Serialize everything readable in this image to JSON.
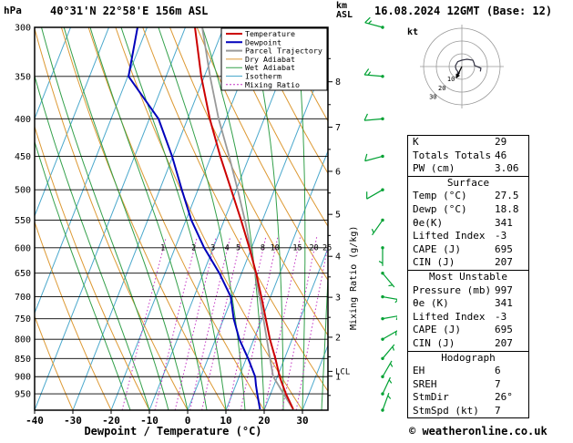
{
  "header": {
    "pressure_unit": "hPa",
    "station": "40°31'N 22°58'E 156m ASL",
    "altitude_unit": "km",
    "altitude_unit_2": "ASL",
    "datetime": "16.08.2024 12GMT (Base: 12)"
  },
  "axes": {
    "pressure_ticks": [
      300,
      350,
      400,
      450,
      500,
      550,
      600,
      650,
      700,
      750,
      800,
      850,
      900,
      950
    ],
    "temp_ticks": [
      -40,
      -30,
      -20,
      -10,
      0,
      10,
      20,
      30
    ],
    "km_ticks": [
      1,
      2,
      3,
      4,
      5,
      6,
      7,
      8
    ],
    "x_label": "Dewpoint / Temperature (°C)",
    "mixing_ratio_axis_label": "Mixing Ratio (g/kg)",
    "mixing_ratio_ticks": [
      1,
      2,
      3,
      4,
      5,
      8,
      10,
      15,
      20,
      25
    ],
    "lcl_label": "LCL"
  },
  "legend": [
    {
      "label": "Temperature",
      "style": "temperature",
      "width": 2,
      "dash": ""
    },
    {
      "label": "Dewpoint",
      "style": "dewpoint",
      "width": 2,
      "dash": ""
    },
    {
      "label": "Parcel Trajectory",
      "style": "parcel",
      "width": 2,
      "dash": ""
    },
    {
      "label": "Dry Adiabat",
      "style": "dry_adiabat",
      "width": 1,
      "dash": ""
    },
    {
      "label": "Wet Adiabat",
      "style": "wet_adiabat",
      "width": 1,
      "dash": ""
    },
    {
      "label": "Isotherm",
      "style": "isotherm",
      "width": 1,
      "dash": ""
    },
    {
      "label": "Mixing Ratio",
      "style": "mixing_ratio",
      "width": 1,
      "dash": "2,2"
    }
  ],
  "chart_style": {
    "temperature": "#cc0000",
    "dewpoint": "#0000bb",
    "parcel": "#999999",
    "dry_adiabat": "#dd9933",
    "wet_adiabat": "#33a04a",
    "isotherm": "#4aa8cc",
    "mixing_ratio": "#c333c3",
    "wind": "#00a133"
  },
  "chart_data": {
    "type": "line",
    "title": "Skew-T log-P sounding",
    "xlabel": "Dewpoint / Temperature (°C)",
    "ylabel": "hPa",
    "x_range": [
      -40,
      37
    ],
    "pressure_range": [
      300,
      1000
    ],
    "legend_position": "top-right",
    "grid": true,
    "pressure": [
      997,
      950,
      925,
      900,
      850,
      800,
      750,
      700,
      650,
      600,
      550,
      500,
      450,
      400,
      350,
      300
    ],
    "series": {
      "temperature": [
        27.5,
        24.0,
        22.3,
        20.6,
        17.6,
        14.2,
        11.0,
        7.6,
        3.8,
        -0.6,
        -5.6,
        -11.3,
        -17.6,
        -24.2,
        -30.8,
        -37.5
      ],
      "dewpoint": [
        18.8,
        16.5,
        15.3,
        14.2,
        10.5,
        6.2,
        2.6,
        -0.4,
        -5.8,
        -12.4,
        -18.6,
        -24.2,
        -30.2,
        -37.6,
        -49.8,
        -52.5
      ],
      "parcel": [
        27.5,
        23.4,
        21.2,
        18.9,
        16.2,
        13.4,
        10.4,
        7.1,
        3.6,
        -0.3,
        -4.6,
        -9.6,
        -15.3,
        -21.9,
        -28.5,
        -35.6
      ]
    },
    "lcl_pressure": 885
  },
  "wind_barbs": [
    {
      "p": 1000,
      "dir": 20,
      "spd": 5
    },
    {
      "p": 950,
      "dir": 25,
      "spd": 7
    },
    {
      "p": 900,
      "dir": 30,
      "spd": 7
    },
    {
      "p": 850,
      "dir": 40,
      "spd": 5
    },
    {
      "p": 800,
      "dir": 60,
      "spd": 5
    },
    {
      "p": 750,
      "dir": 80,
      "spd": 5
    },
    {
      "p": 700,
      "dir": 100,
      "spd": 5
    },
    {
      "p": 650,
      "dir": 140,
      "spd": 5
    },
    {
      "p": 600,
      "dir": 180,
      "spd": 5
    },
    {
      "p": 550,
      "dir": 215,
      "spd": 7
    },
    {
      "p": 500,
      "dir": 240,
      "spd": 10
    },
    {
      "p": 450,
      "dir": 255,
      "spd": 10
    },
    {
      "p": 400,
      "dir": 265,
      "spd": 10
    },
    {
      "p": 350,
      "dir": 275,
      "spd": 15
    },
    {
      "p": 300,
      "dir": 285,
      "spd": 15
    }
  ],
  "hodograph": {
    "unit_label": "kt",
    "rings_kt": [
      10,
      20,
      30
    ],
    "storm_motion": {
      "dir_deg": 26,
      "speed_kt": 7
    }
  },
  "table": {
    "sections": [
      {
        "header": "",
        "rows": [
          [
            "K",
            "29"
          ],
          [
            "Totals Totals",
            "46"
          ],
          [
            "PW (cm)",
            "3.06"
          ]
        ]
      },
      {
        "header": "Surface",
        "rows": [
          [
            "Temp (°C)",
            "27.5"
          ],
          [
            "Dewp (°C)",
            "18.8"
          ],
          [
            "θe(K)",
            "341"
          ],
          [
            "Lifted Index",
            "-3"
          ],
          [
            "CAPE (J)",
            "695"
          ],
          [
            "CIN (J)",
            "207"
          ]
        ]
      },
      {
        "header": "Most Unstable",
        "rows": [
          [
            "Pressure (mb)",
            "997"
          ],
          [
            "θe (K)",
            "341"
          ],
          [
            "Lifted Index",
            "-3"
          ],
          [
            "CAPE (J)",
            "695"
          ],
          [
            "CIN (J)",
            "207"
          ]
        ]
      },
      {
        "header": "Hodograph",
        "rows": [
          [
            "EH",
            "6"
          ],
          [
            "SREH",
            "7"
          ],
          [
            "StmDir",
            "26°"
          ],
          [
            "StmSpd (kt)",
            "7"
          ]
        ]
      }
    ]
  },
  "footer": {
    "copyright": "© weatheronline.co.uk"
  }
}
